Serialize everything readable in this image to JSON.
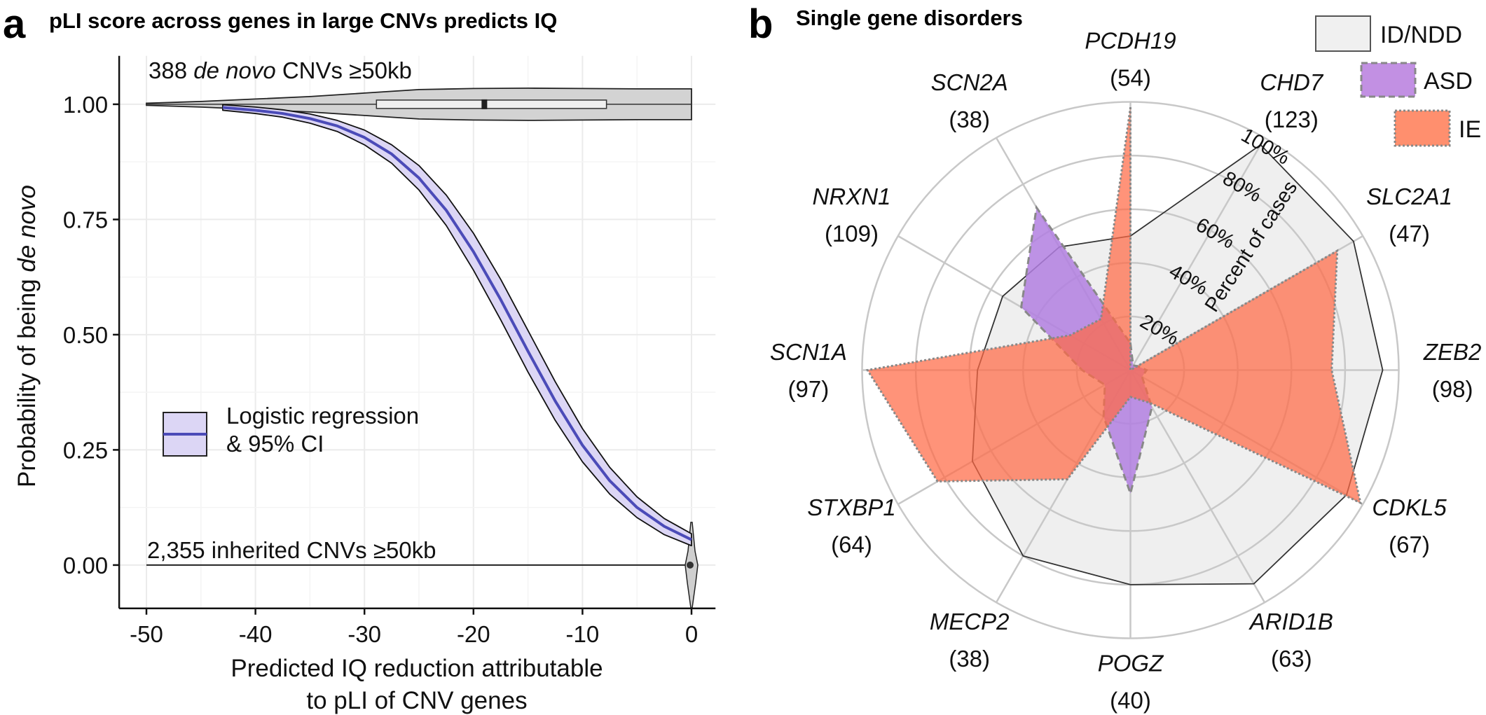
{
  "panel_a": {
    "letter": "a",
    "title": "pLI score across genes in large CNVs predicts IQ"
  },
  "panel_b": {
    "letter": "b",
    "title": "Single gene disorders"
  },
  "chart_data": [
    {
      "type": "line",
      "title": "pLI score across genes in large CNVs predicts IQ",
      "xlabel": [
        "Predicted IQ reduction attributable",
        "to pLI of CNV genes"
      ],
      "ylabel": {
        "plain": "Probability of being ",
        "italic": "de novo"
      },
      "xlim": [
        -52.5,
        2.2
      ],
      "ylim": [
        -0.094,
        1.105
      ],
      "xticks": [
        -50,
        -40,
        -30,
        -20,
        -10,
        0
      ],
      "xtick_labels": [
        "-50",
        "-40",
        "-30",
        "-20",
        "-10",
        "0"
      ],
      "yticks": [
        0,
        0.25,
        0.5,
        0.75,
        1.0
      ],
      "ytick_labels": [
        "0.00",
        "0.25",
        "0.50",
        "0.75",
        "1.00"
      ],
      "grid": true,
      "series": [
        {
          "name": "Logistic regression & 95% CI",
          "color": "#4b4bb8",
          "ci_fill": "#dcd6f5",
          "x": [
            -43,
            -40,
            -37.5,
            -35,
            -32.5,
            -30,
            -27.5,
            -25,
            -22.5,
            -20,
            -17.5,
            -15,
            -12.5,
            -10,
            -7.5,
            -5,
            -2.5,
            0
          ],
          "y": [
            0.993,
            0.987,
            0.98,
            0.969,
            0.953,
            0.928,
            0.892,
            0.84,
            0.77,
            0.68,
            0.576,
            0.464,
            0.356,
            0.26,
            0.183,
            0.125,
            0.084,
            0.055
          ],
          "lower": [
            0.987,
            0.98,
            0.972,
            0.959,
            0.941,
            0.912,
            0.872,
            0.814,
            0.737,
            0.64,
            0.532,
            0.419,
            0.314,
            0.224,
            0.154,
            0.103,
            0.066,
            0.042
          ],
          "upper": [
            0.999,
            0.994,
            0.988,
            0.979,
            0.965,
            0.944,
            0.912,
            0.867,
            0.803,
            0.72,
            0.62,
            0.509,
            0.398,
            0.296,
            0.212,
            0.148,
            0.101,
            0.068
          ]
        }
      ],
      "legend": {
        "line1": "Logistic regression",
        "line2": "& 95% CI",
        "placement": "left-middle"
      },
      "violins": [
        {
          "y": 1,
          "label": [
            "388 ",
            "de novo",
            " CNVs ≥50kb"
          ],
          "x_range": [
            -50,
            0
          ],
          "box": {
            "q1": -28.9,
            "median": -19.0,
            "q3": -7.8
          }
        },
        {
          "y": 0,
          "label": "2,355 inherited CNVs ≥50kb",
          "x_range": [
            -50,
            0
          ]
        }
      ]
    },
    {
      "type": "radar",
      "title": "Single gene disorders",
      "categories": [
        "PCDH19",
        "CHD7",
        "SLC2A1",
        "ZEB2",
        "CDKL5",
        "ARID1B",
        "POGZ",
        "MECP2",
        "STXBP1",
        "SCN1A",
        "NRXN1",
        "SCN2A"
      ],
      "counts": [
        "(54)",
        "(123)",
        "(47)",
        "(98)",
        "(67)",
        "(63)",
        "(40)",
        "(38)",
        "(64)",
        "(97)",
        "(109)",
        "(38)"
      ],
      "r_ticks": [
        20,
        40,
        60,
        80,
        100
      ],
      "r_tick_labels": [
        "20%",
        "40%",
        "60%",
        "80%",
        "100%"
      ],
      "r_label": "Percent of cases",
      "series": [
        {
          "name": "ID/NDD",
          "fill": "#efefef",
          "stroke": "#333333",
          "values": [
            50,
            97,
            96,
            94,
            93,
            92,
            80,
            80,
            68,
            57,
            55,
            53
          ]
        },
        {
          "name": "ASD",
          "fill": "#b27fe0",
          "stroke": "#888888",
          "values": [
            10,
            2,
            3,
            6,
            5,
            16,
            46,
            20,
            11,
            18,
            47,
            70
          ]
        },
        {
          "name": "IE",
          "fill": "#ff6a45",
          "stroke": "#888888",
          "values": [
            98,
            0,
            89,
            75,
            99,
            14,
            10,
            47,
            83,
            98,
            26,
            22
          ]
        }
      ],
      "legend_placement": "top-right"
    }
  ]
}
